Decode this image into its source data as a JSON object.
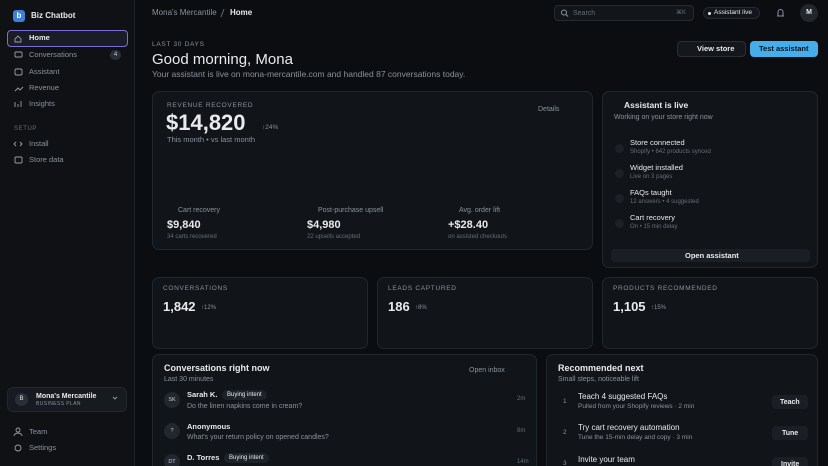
{
  "sidebar": {
    "logo": "b",
    "brand": "Biz Chatbot",
    "nav": [
      {
        "label": "Home"
      },
      {
        "label": "Conversations",
        "badge": 4
      },
      {
        "label": "Assistant"
      },
      {
        "label": "Revenue"
      },
      {
        "label": "Insights"
      }
    ],
    "setup_heading": "SETUP",
    "setup": [
      "Install",
      "Store data"
    ],
    "workspace": {
      "initial": "B",
      "name": "Mona's Mercantile",
      "plan": "BUSINESS PLAN"
    },
    "footer": [
      "Team",
      "Settings"
    ]
  },
  "topbar": {
    "breadcrumb": [
      "Mona's Mercantile",
      "Home"
    ],
    "search_placeholder": "Search",
    "shortcut": "⌘K",
    "status": "Assistant live",
    "avatar": "M"
  },
  "header": {
    "eyebrow": "LAST 30 DAYS",
    "title": "Good morning, Mona",
    "subtitle": "Your assistant is live on mona-mercantile.com and handled 87 conversations today.",
    "actions": [
      "View store",
      "Test assistant"
    ]
  },
  "revenue": {
    "label": "REVENUE RECOVERED",
    "value": "$14,820",
    "change": "↑24%",
    "period": "This month • vs last month",
    "link": "Details",
    "stats": [
      {
        "label": "Cart recovery",
        "value": "$9,840",
        "sub": "34 carts recovered"
      },
      {
        "label": "Post-purchase upsell",
        "value": "$4,980",
        "sub": "22 upsells accepted"
      },
      {
        "label": "Avg. order lift",
        "value": "+$28.40",
        "sub": "on assisted checkouts"
      }
    ]
  },
  "assistant": {
    "title": "Assistant is live",
    "subtitle": "Working on your store right now",
    "items": [
      {
        "title": "Store connected",
        "sub": "Shopify • 642 products synced"
      },
      {
        "title": "Widget installed",
        "sub": "Live on 3 pages"
      },
      {
        "title": "FAQs taught",
        "sub": "12 answers • 4 suggested"
      },
      {
        "title": "Cart recovery",
        "sub": "On • 15 min delay"
      }
    ],
    "button": "Open assistant"
  },
  "metrics": [
    {
      "label": "CONVERSATIONS",
      "value": "1,842",
      "change": "↑12%"
    },
    {
      "label": "LEADS CAPTURED",
      "value": "186",
      "change": "↑8%"
    },
    {
      "label": "PRODUCTS RECOMMENDED",
      "value": "1,105",
      "change": "↑15%"
    }
  ],
  "conversations": {
    "title": "Conversations right now",
    "subtitle": "Last 30 minutes",
    "link": "Open inbox",
    "rows": [
      {
        "initials": "SK",
        "name": "Sarah K.",
        "tag": "Buying intent",
        "message": "Do the linen napkins come in cream?",
        "time": "2m"
      },
      {
        "initials": "?",
        "name": "Anonymous",
        "message": "What's your return policy on opened candles?",
        "time": "8m"
      },
      {
        "initials": "DT",
        "name": "D. Torres",
        "tag": "Buying intent",
        "time": "14m"
      }
    ]
  },
  "recommended": {
    "title": "Recommended next",
    "subtitle": "Small steps, noticeable lift",
    "items": [
      {
        "number": 1,
        "title": "Teach 4 suggested FAQs",
        "sub": "Pulled from your Shopify reviews · 2 min",
        "action": "Teach"
      },
      {
        "number": 2,
        "title": "Try cart recovery automation",
        "sub": "Tune the 15-min delay and copy · 3 min",
        "action": "Tune"
      },
      {
        "number": 3,
        "title": "Invite your team",
        "action": "Invite"
      }
    ]
  }
}
